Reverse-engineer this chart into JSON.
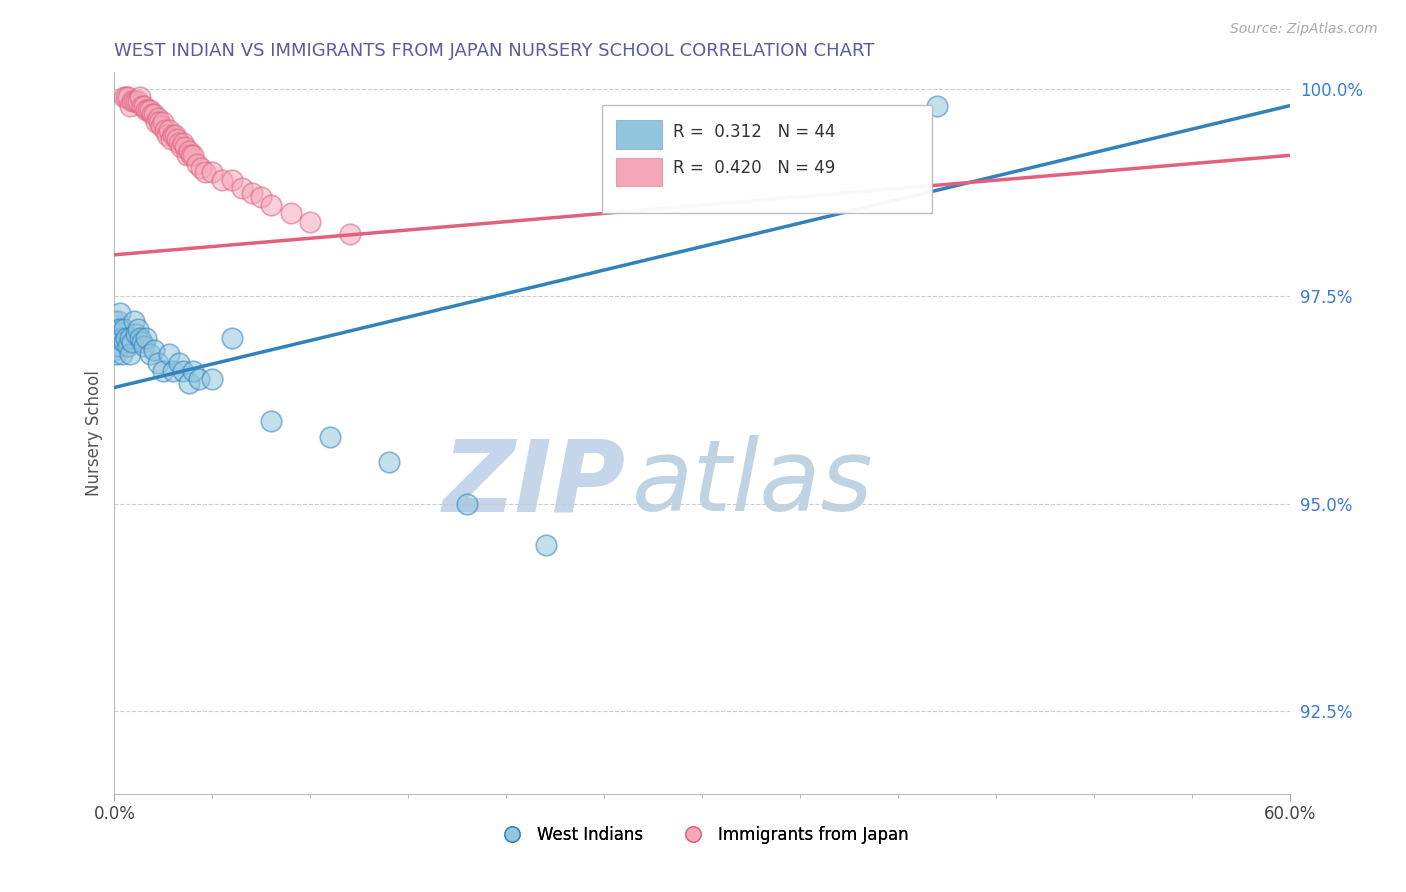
{
  "title": "WEST INDIAN VS IMMIGRANTS FROM JAPAN NURSERY SCHOOL CORRELATION CHART",
  "source": "Source: ZipAtlas.com",
  "ylabel": "Nursery School",
  "color_blue": "#92c5de",
  "color_pink": "#f4a7b9",
  "color_blue_dark": "#3182bd",
  "color_pink_dark": "#e0607e",
  "title_color": "#5b5b9e",
  "source_color": "#aaaaaa",
  "watermark_zip_color": "#c5d5ea",
  "watermark_atlas_color": "#b8cfe0",
  "xlim": [
    0.0,
    0.6
  ],
  "ylim": [
    0.915,
    1.002
  ],
  "yticks": [
    1.0,
    0.975,
    0.95,
    0.925
  ],
  "ytick_labels": [
    "100.0%",
    "97.5%",
    "95.0%",
    "92.5%"
  ],
  "blue_x": [
    0.0,
    0.0,
    0.001,
    0.001,
    0.002,
    0.002,
    0.002,
    0.003,
    0.003,
    0.004,
    0.004,
    0.005,
    0.005,
    0.006,
    0.007,
    0.008,
    0.008,
    0.009,
    0.01,
    0.011,
    0.012,
    0.013,
    0.014,
    0.015,
    0.016,
    0.018,
    0.02,
    0.022,
    0.025,
    0.028,
    0.03,
    0.033,
    0.035,
    0.038,
    0.04,
    0.043,
    0.05,
    0.06,
    0.08,
    0.11,
    0.14,
    0.18,
    0.22,
    0.42
  ],
  "blue_y": [
    0.9685,
    0.972,
    0.97,
    0.968,
    0.972,
    0.971,
    0.969,
    0.973,
    0.971,
    0.97,
    0.968,
    0.971,
    0.9695,
    0.97,
    0.969,
    0.97,
    0.968,
    0.9695,
    0.972,
    0.9705,
    0.971,
    0.97,
    0.9695,
    0.969,
    0.97,
    0.968,
    0.9685,
    0.967,
    0.966,
    0.968,
    0.966,
    0.967,
    0.966,
    0.9645,
    0.966,
    0.965,
    0.965,
    0.97,
    0.96,
    0.958,
    0.955,
    0.95,
    0.945,
    0.998
  ],
  "pink_x": [
    0.005,
    0.006,
    0.007,
    0.008,
    0.009,
    0.01,
    0.011,
    0.012,
    0.013,
    0.014,
    0.015,
    0.016,
    0.017,
    0.018,
    0.019,
    0.02,
    0.021,
    0.022,
    0.023,
    0.024,
    0.025,
    0.026,
    0.027,
    0.028,
    0.029,
    0.03,
    0.031,
    0.032,
    0.033,
    0.034,
    0.035,
    0.036,
    0.037,
    0.038,
    0.039,
    0.04,
    0.042,
    0.044,
    0.046,
    0.05,
    0.055,
    0.06,
    0.065,
    0.07,
    0.075,
    0.08,
    0.09,
    0.1,
    0.12
  ],
  "pink_y": [
    0.999,
    0.999,
    0.999,
    0.998,
    0.9985,
    0.9985,
    0.9985,
    0.9985,
    0.999,
    0.998,
    0.998,
    0.9975,
    0.9975,
    0.9975,
    0.997,
    0.997,
    0.996,
    0.9965,
    0.996,
    0.9955,
    0.996,
    0.995,
    0.9945,
    0.995,
    0.994,
    0.9945,
    0.9945,
    0.994,
    0.9935,
    0.993,
    0.9935,
    0.993,
    0.992,
    0.9925,
    0.992,
    0.992,
    0.991,
    0.9905,
    0.99,
    0.99,
    0.989,
    0.989,
    0.988,
    0.9875,
    0.987,
    0.986,
    0.985,
    0.984,
    0.9825
  ],
  "blue_line_x0": 0.0,
  "blue_line_x1": 0.6,
  "blue_line_y0": 0.964,
  "blue_line_y1": 0.998,
  "pink_line_x0": 0.0,
  "pink_line_x1": 0.6,
  "pink_line_y0": 0.98,
  "pink_line_y1": 0.992
}
